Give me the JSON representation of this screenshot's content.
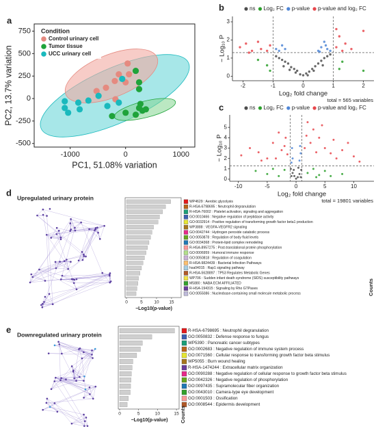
{
  "chart_data": [
    {
      "panel": "a",
      "type": "scatter",
      "xlabel": "PC1, 51.08% variation",
      "ylabel": "PC2, 13.7% variation",
      "legend_title": "Condition",
      "xlim": [
        -1650,
        1250
      ],
      "xticks": [
        -1000,
        0,
        1000
      ],
      "ylim": [
        -540,
        830
      ],
      "yticks": [
        -500,
        -250,
        0,
        250,
        500,
        750
      ],
      "series": [
        {
          "name": "Control urinary cell",
          "color": "#e58a80",
          "x": [
            -524,
            -354,
            -195,
            -122,
            37,
            61,
            0,
            -183
          ],
          "values": [
            83,
            120,
            195,
            270,
            390,
            270,
            180,
            -8
          ]
        },
        {
          "name": "Tumor tissue",
          "color": "#1fa33a",
          "x": [
            183,
            244,
            244,
            -244,
            0,
            244,
            305,
            183,
            366,
            268
          ],
          "values": [
            308,
            180,
            105,
            -195,
            -158,
            -105,
            -135,
            -180,
            -120,
            -60
          ]
        },
        {
          "name": "UCC urinary cell",
          "color": "#19b9bd",
          "x": [
            -1098,
            -1098,
            -1037,
            -829,
            -854,
            -671,
            -488,
            -329,
            -122,
            -61
          ],
          "values": [
            -30,
            -105,
            -158,
            -120,
            -45,
            -22,
            30,
            -83,
            -45,
            218
          ]
        }
      ]
    },
    {
      "panel": "b",
      "type": "volcano",
      "xlabel": "Log₂ fold change",
      "ylabel": "− Log₁₀ P",
      "note": "total = 565 variables",
      "xlim": [
        -2.35,
        2.35
      ],
      "xticks": [
        -2,
        -1,
        0,
        1,
        2
      ],
      "ylim": [
        -0.25,
        3.3
      ],
      "yticks": [
        0,
        1,
        2,
        3
      ],
      "vlines": [
        -1,
        1
      ],
      "hline": 1.3,
      "series": [
        {
          "name": "ns",
          "color": "#4d4d4d",
          "x": [
            -0.9,
            -0.8,
            -0.7,
            -0.6,
            -0.5,
            -0.4,
            -0.3,
            -0.2,
            -0.1,
            0,
            0.1,
            0.2,
            0.3,
            0.4,
            0.5,
            0.6,
            0.7,
            0.8,
            0.9,
            -0.25,
            0.15,
            -0.45,
            0.35,
            -0.65,
            0.65
          ],
          "values": [
            1.1,
            1.0,
            0.9,
            0.8,
            0.7,
            0.5,
            0.4,
            0.3,
            0.1,
            0.05,
            0.15,
            0.25,
            0.4,
            0.55,
            0.7,
            0.85,
            1.0,
            1.1,
            1.2,
            0.2,
            0.05,
            0.35,
            0.3,
            0.55,
            0.6
          ]
        },
        {
          "name": "Log₂ FC",
          "color": "#2ca02c",
          "x": [
            -1.5,
            -1.2,
            -1.1,
            1.3,
            1.2,
            2.0
          ],
          "values": [
            0.9,
            0.6,
            0.3,
            0.8,
            0.4,
            0.3
          ]
        },
        {
          "name": "p-value",
          "color": "#4f86d6",
          "x": [
            -0.9,
            -0.8,
            -0.7,
            -0.6,
            0.5,
            0.6,
            0.7,
            0.8,
            0.9,
            0.75,
            0.55
          ],
          "values": [
            1.5,
            1.4,
            1.7,
            1.5,
            1.4,
            1.6,
            1.9,
            1.5,
            1.4,
            1.7,
            1.35
          ]
        },
        {
          "name": "p-value and log₂ FC",
          "color": "#e8474c",
          "x": [
            -2.1,
            -1.9,
            -1.7,
            -1.5,
            -1.4,
            -1.2,
            -1.1,
            -1.8,
            1.1,
            1.2,
            1.4,
            1.6,
            2.0,
            1.1,
            1.3
          ],
          "values": [
            1.6,
            1.8,
            1.4,
            1.9,
            1.5,
            1.4,
            1.7,
            1.3,
            1.6,
            2.2,
            1.8,
            1.5,
            2.5,
            2.6,
            1.4
          ]
        }
      ]
    },
    {
      "panel": "c",
      "type": "volcano",
      "xlabel": "Log₂ fold change",
      "ylabel": "− Log₁₀ P",
      "note": "total = 19801 variables",
      "xlim": [
        -11.5,
        13.5
      ],
      "xticks": [
        -10,
        -5,
        0,
        5,
        10
      ],
      "ylim": [
        -0.2,
        6.2
      ],
      "yticks": [
        0,
        1,
        2,
        3,
        4,
        5
      ],
      "vlines": [
        -1,
        1
      ],
      "hline": 1.3,
      "series": [
        {
          "name": "ns",
          "color": "#4d4d4d",
          "x": [
            -0.9,
            -0.6,
            -0.3,
            0,
            0.3,
            0.6,
            0.9,
            -0.8,
            0.8,
            -0.4,
            0.4
          ],
          "values": [
            1,
            0.6,
            0.3,
            0.05,
            0.2,
            0.5,
            0.9,
            0.3,
            0.2,
            0.9,
            1.1
          ]
        },
        {
          "name": "Log₂ FC",
          "color": "#2ca02c",
          "x": [
            -7,
            -5,
            -4,
            -3,
            -2,
            2,
            3,
            4,
            5,
            6,
            8,
            3.5
          ],
          "values": [
            0.8,
            0.5,
            1,
            0.3,
            0.9,
            0.6,
            1.0,
            0.4,
            0.8,
            0.3,
            0.5,
            0.2
          ]
        },
        {
          "name": "p-value",
          "color": "#4f86d6",
          "x": [
            -0.8,
            -0.6,
            -0.7,
            0.6,
            0.8,
            0.7
          ],
          "values": [
            1.6,
            2,
            3,
            1.8,
            2.5,
            3.2
          ]
        },
        {
          "name": "p-value and log₂ FC",
          "color": "#e8474c",
          "x": [
            -9.5,
            -8,
            -6.5,
            -5,
            -4,
            -3,
            -2.5,
            -2,
            -1.5,
            -6,
            -3.5,
            -1.8,
            2,
            3,
            2.5,
            4,
            5,
            6,
            7,
            8,
            9,
            10,
            1.5,
            3.5,
            1.8,
            6.5,
            11,
            4.5
          ],
          "values": [
            2.3,
            3,
            2.6,
            2,
            3.5,
            4.5,
            2.8,
            3.2,
            2.4,
            1.8,
            2,
            4,
            5.5,
            4.8,
            3.5,
            4,
            3,
            2.5,
            2,
            2.8,
            3.5,
            2.2,
            3,
            2.6,
            4.2,
            3.8,
            1.7,
            5.2
          ]
        }
      ]
    },
    {
      "panel": "d",
      "type": "enrichment",
      "title": "Upregulated urinary protein",
      "xlabel": "−Log10(p-value)",
      "legend_title": "Counts",
      "color": "#cfcfcf",
      "xlim": [
        0,
        18.2
      ],
      "xticks": [
        0,
        5,
        10,
        15
      ],
      "categories": [
        "WP4629 : Aerobic glycolysis",
        "R-HSA-6798695 : Neutrophil degranulation",
        "R-HSA-76002 : Platelet activation, signaling and aggregation",
        "GO:0010466 : Negative regulation of peptidase activity",
        "GO:0032914 : Positive regulation of transforming growth factor beta1 production",
        "WP3888 : VEGFA-VEGFR2 signaling",
        "GO:0042744 : Hydrogen peroxide catabolic process",
        "GO:0050878 : Regulation of body fluid levels",
        "GO:0034368 : Protein-lipid complex remodeling",
        "R-HSA-8957275 : Post-translational protein phosphorylation",
        "GO:0006959 : Humoral immune response",
        "GO:0050818 : Regulation of coagulation",
        "R-HSA-9824439 : Bacterial Infection Pathways",
        "hsa04015 : Rap1 signaling pathway",
        "R-HSA-5628897 : TP53 Regulates Metabolic Genes",
        "WP706 : Sudden infant death syndrome (SIDS) susceptibility pathways",
        "M5880 : NABA ECM AFFILIATED",
        "R-HSA-194315 : Signaling by Rho GTPases",
        "GO:0055086 : Nucleobase-containing small molecule metabolic process"
      ],
      "values": [
        14.7,
        13,
        12,
        11,
        10.5,
        9,
        8.5,
        8,
        7.5,
        7,
        6.5,
        6,
        5.5,
        5,
        4.5,
        4,
        3.8,
        3.5,
        3.2
      ],
      "colors": [
        "#e31a1c",
        "#b8651b",
        "#1b9e77",
        "#3d5fb0",
        "#e6e633",
        "#a6761d",
        "#e7298a",
        "#66a61e",
        "#1f78b4",
        "#fb9a99",
        "#b2df8a",
        "#cab2d6",
        "#fdbf6f",
        "#a6cee3",
        "#b15928",
        "#f2e24a",
        "#33a02c",
        "#6a3d9a",
        "#bebada"
      ]
    },
    {
      "panel": "e",
      "type": "enrichment",
      "title": "Downregulated urinary protein",
      "xlabel": "−Log10(p-value)",
      "legend_title": "Counts",
      "color": "#cfcfcf",
      "xlim": [
        0,
        15.7
      ],
      "xticks": [
        0,
        5,
        10,
        15
      ],
      "categories": [
        "R-HSA-6798695 : Neutrophil degranulation",
        "GO:0050832 : Defense response to fungus",
        "WP5390 : Pancreatic cancer subtypes",
        "GO:0002683 : Negative regulation of immune system process",
        "GO:0071560 : Cellular response to transforming growth factor beta stimulus",
        "WP5055 : Burn wound healing",
        "R-HSA-1474244 : Extracellular matrix organization",
        "GO:0090288 : Negative regulation of cellular response to growth factor beta stimulus",
        "GO:0042326 : Negative regulation of phosphorylation",
        "GO:0097435 : Supramolecular fiber organization",
        "GO:0043010 : Camera-type eye development",
        "GO:0001503 : Ossification",
        "GO:0008544 : Epidermis development"
      ],
      "values": [
        14.5,
        8.5,
        6,
        5.5,
        4.5,
        3.5,
        3.3,
        3.1,
        3,
        2.9,
        2.8,
        2.3,
        2
      ],
      "colors": [
        "#e31a1c",
        "#3d5fb0",
        "#1b9e77",
        "#b8651b",
        "#e6e633",
        "#a6761d",
        "#6a3d9a",
        "#e7298a",
        "#66a61e",
        "#1f78b4",
        "#33a02c",
        "#fb9a99",
        "#b15928"
      ]
    }
  ]
}
